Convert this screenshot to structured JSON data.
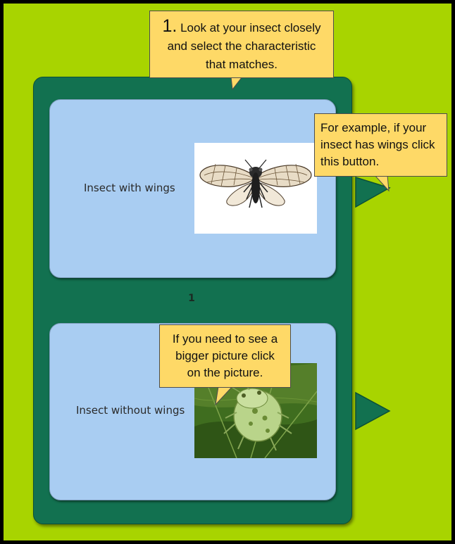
{
  "instructions": {
    "step_number": "1.",
    "step_text_line1": "Look at your insect closely",
    "step_text_line2": "and select the characteristic",
    "step_text_line3": "that matches."
  },
  "key": {
    "couplet_number": "1",
    "choices": [
      {
        "label": "Insect with wings",
        "image": "winged-insect-photo",
        "next": "next-arrow"
      },
      {
        "label": "Insect without wings",
        "image": "wingless-insect-photo",
        "next": "next-arrow"
      }
    ]
  },
  "tips": {
    "wings_button_line1": "For example, if your",
    "wings_button_line2": "insect has wings click",
    "wings_button_line3": "this button.",
    "picture_line1": "If you need to see a",
    "picture_line2": "bigger picture click",
    "picture_line3": "on the picture."
  },
  "colors": {
    "background": "#a8d400",
    "panel": "#127150",
    "choice_card": "#a9cdf2",
    "callout": "#fed967"
  }
}
